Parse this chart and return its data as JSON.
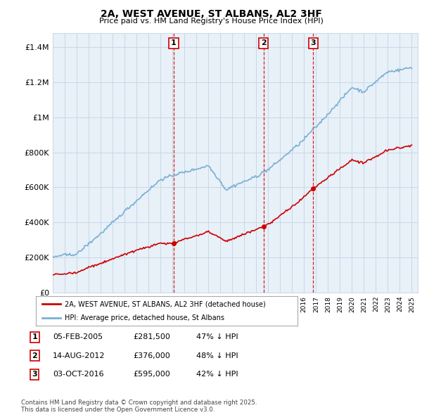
{
  "title": "2A, WEST AVENUE, ST ALBANS, AL2 3HF",
  "subtitle": "Price paid vs. HM Land Registry's House Price Index (HPI)",
  "y_ticks": [
    0,
    200000,
    400000,
    600000,
    800000,
    1000000,
    1200000,
    1400000
  ],
  "y_tick_labels": [
    "£0",
    "£200K",
    "£400K",
    "£600K",
    "£800K",
    "£1M",
    "£1.2M",
    "£1.4M"
  ],
  "ylim": [
    0,
    1480000
  ],
  "sale_color": "#cc0000",
  "hpi_color": "#7aafd4",
  "vline_color": "#cc0000",
  "grid_color": "#c8d8e8",
  "plot_bg_color": "#e8f0f8",
  "bg_color": "#ffffff",
  "transactions": [
    {
      "label": "1",
      "date": 2005.1,
      "price": 281500
    },
    {
      "label": "2",
      "date": 2012.62,
      "price": 376000
    },
    {
      "label": "3",
      "date": 2016.75,
      "price": 595000
    }
  ],
  "legend_entries": [
    "2A, WEST AVENUE, ST ALBANS, AL2 3HF (detached house)",
    "HPI: Average price, detached house, St Albans"
  ],
  "table_rows": [
    [
      "1",
      "05-FEB-2005",
      "£281,500",
      "47% ↓ HPI"
    ],
    [
      "2",
      "14-AUG-2012",
      "£376,000",
      "48% ↓ HPI"
    ],
    [
      "3",
      "03-OCT-2016",
      "£595,000",
      "42% ↓ HPI"
    ]
  ],
  "footnote": "Contains HM Land Registry data © Crown copyright and database right 2025.\nThis data is licensed under the Open Government Licence v3.0."
}
